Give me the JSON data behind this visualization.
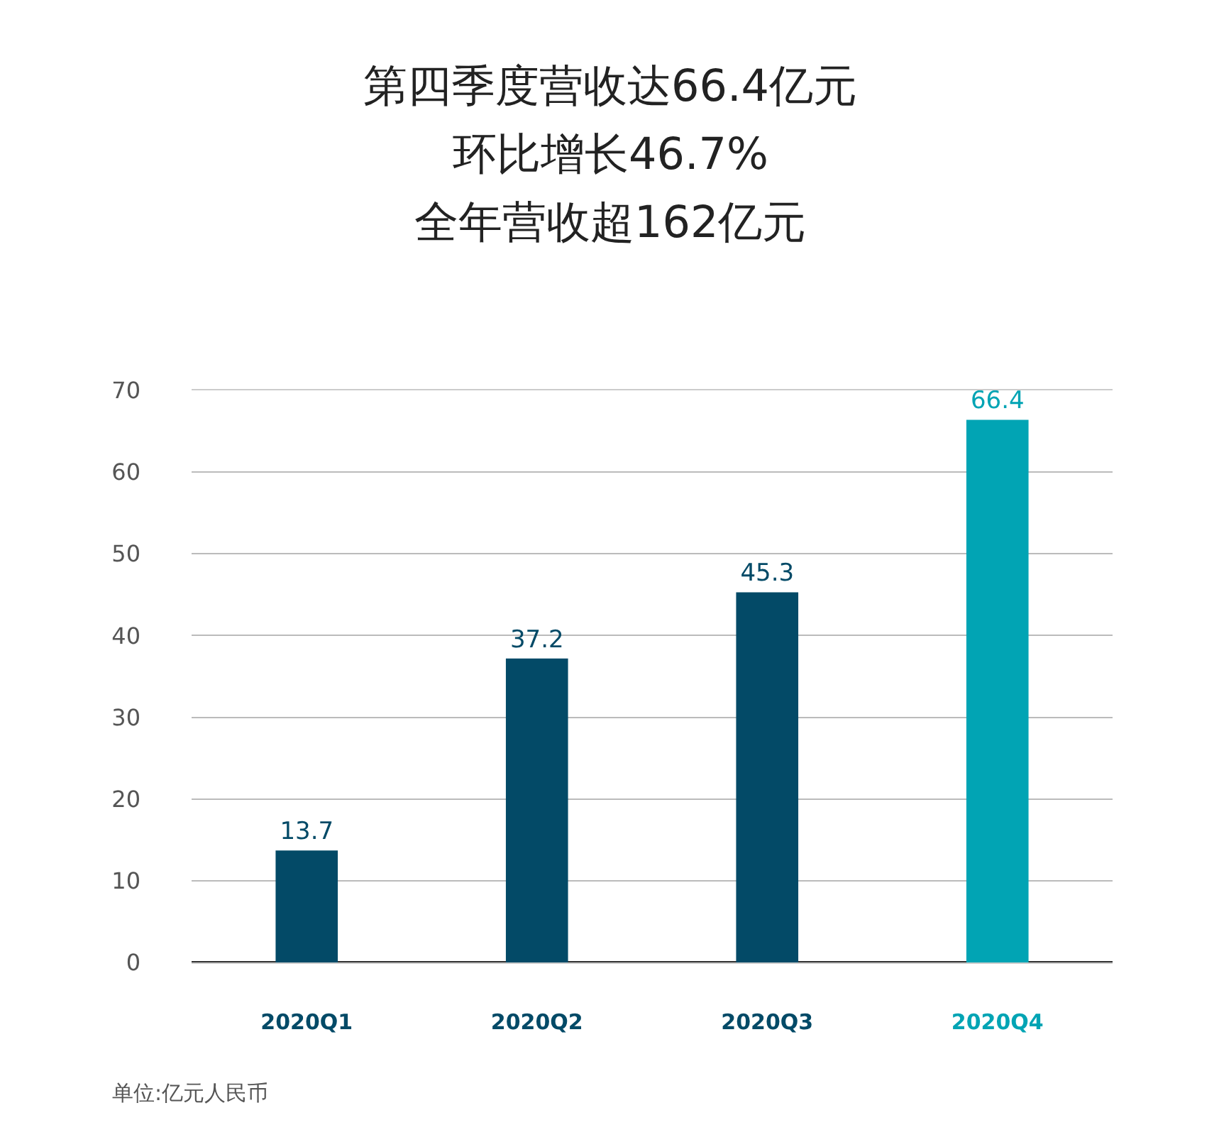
{
  "chart_data": {
    "type": "bar",
    "title": "第四季度营收达66.4亿元",
    "subtitle": "环比增长46.7%",
    "categories": [
      "2020Q1",
      "2020Q2",
      "2020Q3",
      "2020Q4"
    ],
    "values": [
      13.7,
      37.2,
      45.3,
      66.4
    ],
    "colors": [
      "#034a67",
      "#034a67",
      "#034a67",
      "#01a4b4"
    ],
    "data_labels": true,
    "ylim": [
      0,
      70
    ],
    "yticks": [
      0,
      10,
      20,
      30,
      40,
      50,
      60,
      70
    ],
    "grid": "y",
    "annotations": [
      "全年营收超162亿元",
      "单位:亿元人民币"
    ]
  }
}
